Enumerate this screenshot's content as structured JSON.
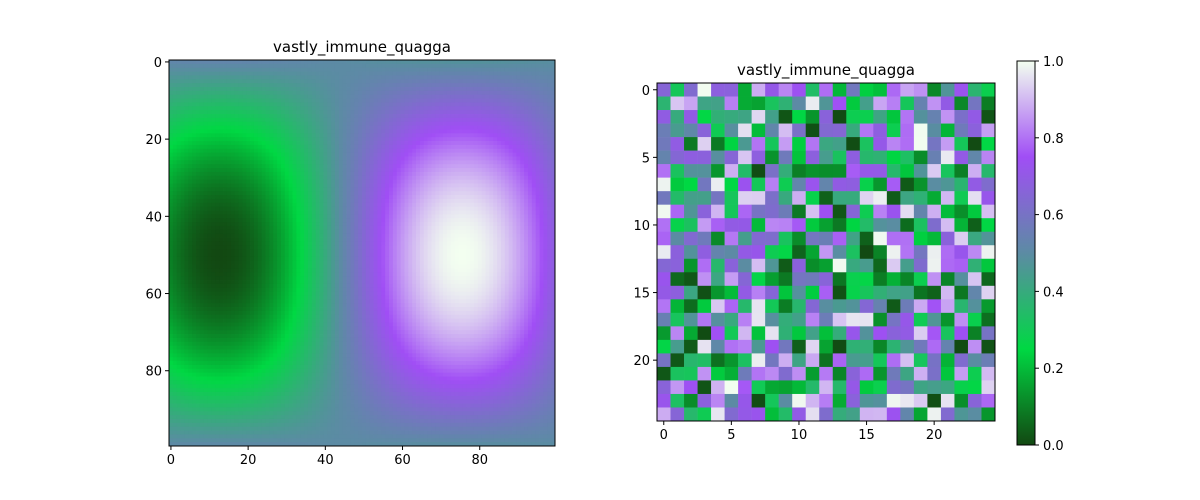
{
  "chart_data": [
    {
      "type": "heatmap",
      "title": "vastly_immune_quagga",
      "xlabel": "",
      "ylabel": "",
      "shape": [
        100,
        100
      ],
      "xlim": [
        -0.5,
        99.5
      ],
      "ylim": [
        99.5,
        -0.5
      ],
      "xticks": [
        0,
        20,
        40,
        60,
        80
      ],
      "yticks": [
        0,
        20,
        40,
        60,
        80
      ],
      "function": "value = 0.5 + 0.5*sin(x/20 - 2.2)*cos((y - 50)/31); peaks near (95,50) and trough near (10,50)",
      "value_range": [
        0,
        1
      ]
    },
    {
      "type": "heatmap",
      "title": "vastly_immune_quagga",
      "xlabel": "",
      "ylabel": "",
      "shape": [
        25,
        25
      ],
      "xlim": [
        -0.5,
        24.5
      ],
      "ylim": [
        24.5,
        -0.5
      ],
      "xticks": [
        0,
        5,
        10,
        15,
        20
      ],
      "yticks": [
        0,
        5,
        10,
        15,
        20
      ],
      "values": "random uniform values in [0, 1]",
      "value_range": [
        0,
        1
      ]
    }
  ],
  "colorbar": {
    "range": [
      0,
      1
    ],
    "ticks": [
      "0.0",
      "0.2",
      "0.4",
      "0.6",
      "0.8",
      "1.0"
    ]
  },
  "colormap": [
    "#124812",
    "#00d843",
    "#5c8ba4",
    "#a04ef5",
    "#f3fff0"
  ]
}
